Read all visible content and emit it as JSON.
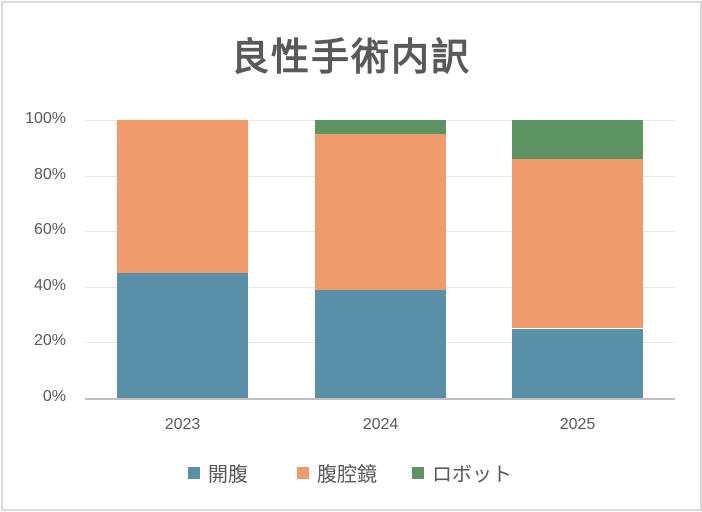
{
  "chart_data": {
    "type": "bar",
    "stacked": true,
    "percent_stacked": true,
    "title": "良性手術内訳",
    "xlabel": "",
    "ylabel": "",
    "categories": [
      "2023",
      "2024",
      "2025"
    ],
    "series": [
      {
        "name": "開腹",
        "color": "#5a8fa8",
        "values": [
          45,
          39,
          25
        ]
      },
      {
        "name": "腹腔鏡",
        "color": "#ef9b6c",
        "values": [
          55,
          56,
          61
        ]
      },
      {
        "name": "ロボット",
        "color": "#5e9463",
        "values": [
          0,
          5,
          14
        ]
      }
    ],
    "ylim": [
      0,
      100
    ],
    "yticks": [
      "0%",
      "20%",
      "40%",
      "60%",
      "80%",
      "100%"
    ],
    "grid": true,
    "legend_position": "bottom"
  }
}
